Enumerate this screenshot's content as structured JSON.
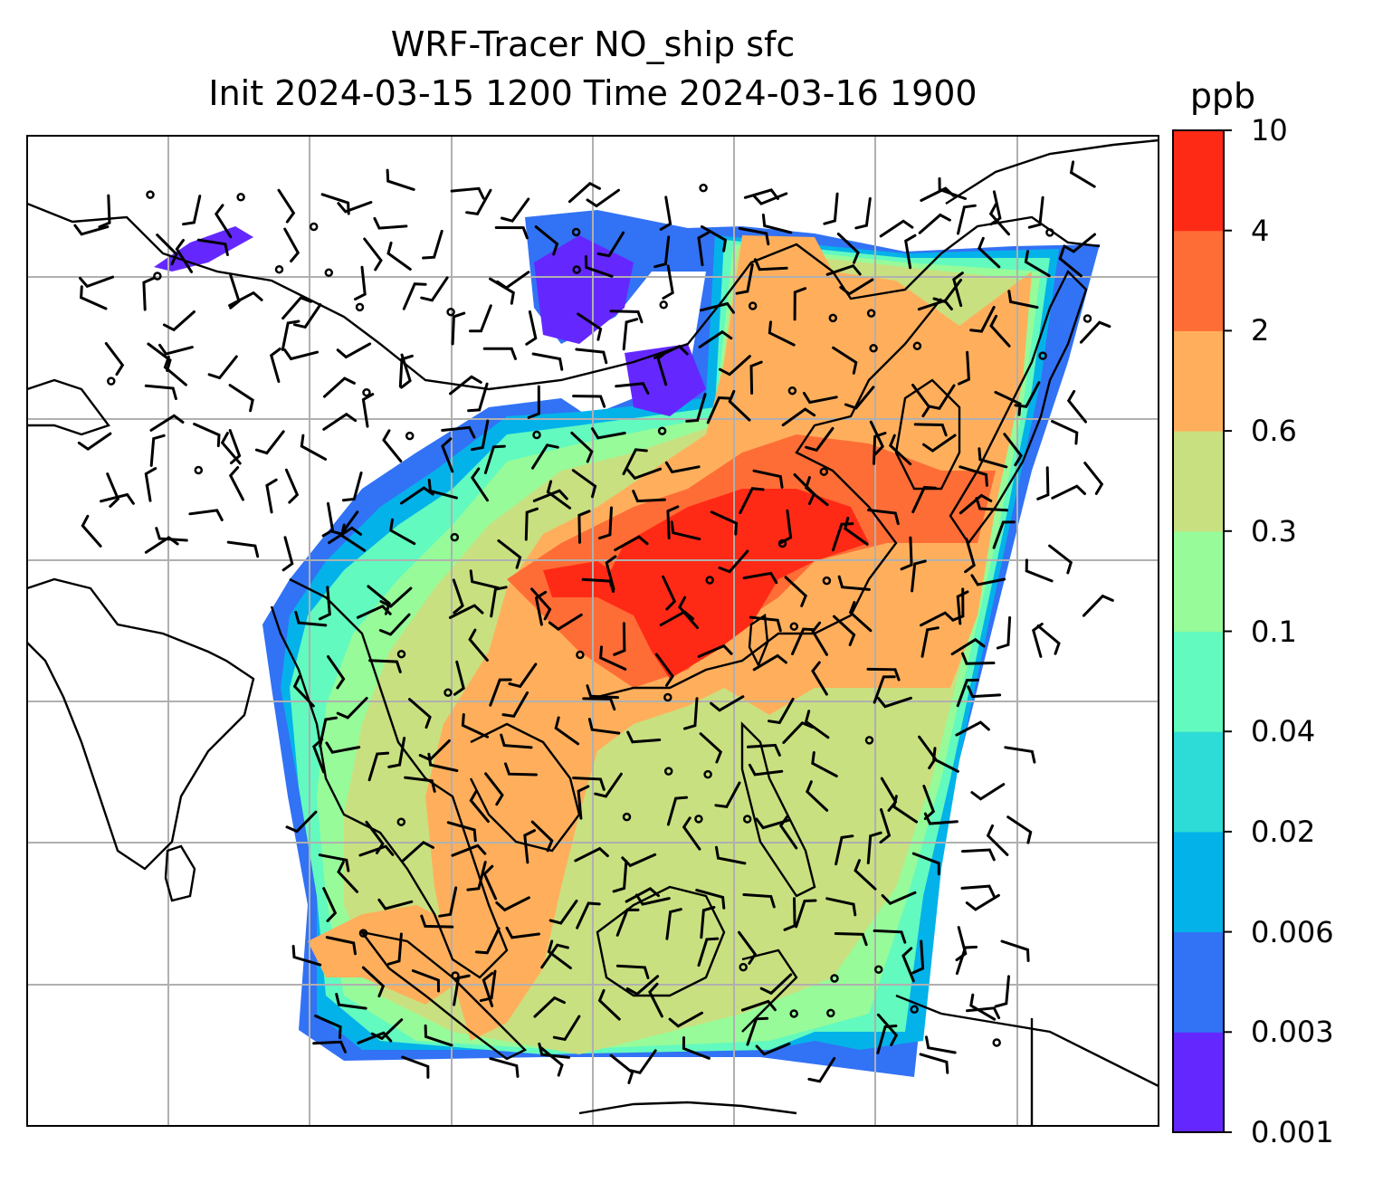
{
  "title": {
    "line1": "WRF-Tracer NO_ship sfc",
    "line2": "Init 2024-03-15 1200 Time 2024-03-16 1900"
  },
  "colorbar": {
    "unit": "ppb",
    "levels": [
      "0.001",
      "0.003",
      "0.006",
      "0.02",
      "0.04",
      "0.1",
      "0.3",
      "0.6",
      "2",
      "4",
      "10"
    ],
    "colors": [
      "#6428ff",
      "#3272f5",
      "#04b2ea",
      "#2ddcd6",
      "#62fabf",
      "#97fb99",
      "#c9e080",
      "#ffaf5c",
      "#ff6d37",
      "#ff2a16"
    ]
  },
  "map": {
    "grid": true,
    "background": "#ffffff",
    "coastline_color": "#000000",
    "wind_barbs": true
  }
}
